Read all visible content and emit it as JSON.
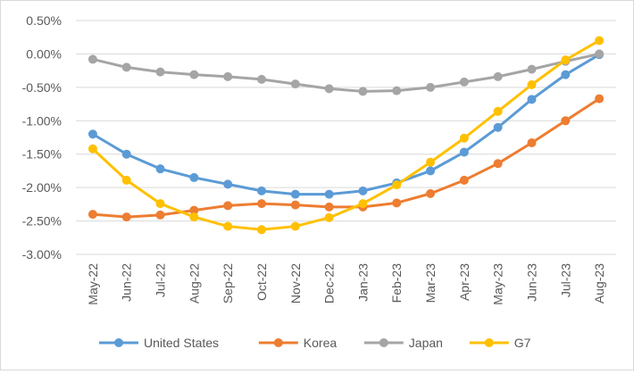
{
  "chart_data": {
    "type": "line",
    "title": "",
    "xlabel": "",
    "ylabel": "",
    "categories": [
      "May-22",
      "Jun-22",
      "Jul-22",
      "Aug-22",
      "Sep-22",
      "Oct-22",
      "Nov-22",
      "Dec-22",
      "Jan-23",
      "Feb-23",
      "Mar-23",
      "Apr-23",
      "May-23",
      "Jun-23",
      "Jul-23",
      "Aug-23"
    ],
    "y_ticks": [
      "0.50%",
      "0.00%",
      "-0.50%",
      "-1.00%",
      "-1.50%",
      "-2.00%",
      "-2.50%",
      "-3.00%"
    ],
    "ylim": [
      -3.0,
      0.5
    ],
    "grid": true,
    "legend_position": "bottom",
    "series": [
      {
        "name": "United States",
        "color": "#5b9bd5",
        "values": [
          -1.2,
          -1.5,
          -1.72,
          -1.85,
          -1.95,
          -2.05,
          -2.1,
          -2.1,
          -2.05,
          -1.93,
          -1.75,
          -1.47,
          -1.1,
          -0.68,
          -0.31,
          -0.01
        ]
      },
      {
        "name": "Korea",
        "color": "#ed7d31",
        "values": [
          -2.4,
          -2.44,
          -2.41,
          -2.34,
          -2.27,
          -2.24,
          -2.26,
          -2.29,
          -2.29,
          -2.23,
          -2.09,
          -1.89,
          -1.64,
          -1.33,
          -1.0,
          -0.67
        ]
      },
      {
        "name": "Japan",
        "color": "#a5a5a5",
        "values": [
          -0.08,
          -0.2,
          -0.27,
          -0.31,
          -0.34,
          -0.38,
          -0.45,
          -0.52,
          -0.56,
          -0.55,
          -0.5,
          -0.42,
          -0.34,
          -0.23,
          -0.11,
          0.0
        ]
      },
      {
        "name": "G7",
        "color": "#ffc000",
        "values": [
          -1.42,
          -1.89,
          -2.24,
          -2.44,
          -2.58,
          -2.63,
          -2.58,
          -2.45,
          -2.24,
          -1.96,
          -1.62,
          -1.26,
          -0.86,
          -0.46,
          -0.09,
          0.2
        ]
      }
    ]
  }
}
